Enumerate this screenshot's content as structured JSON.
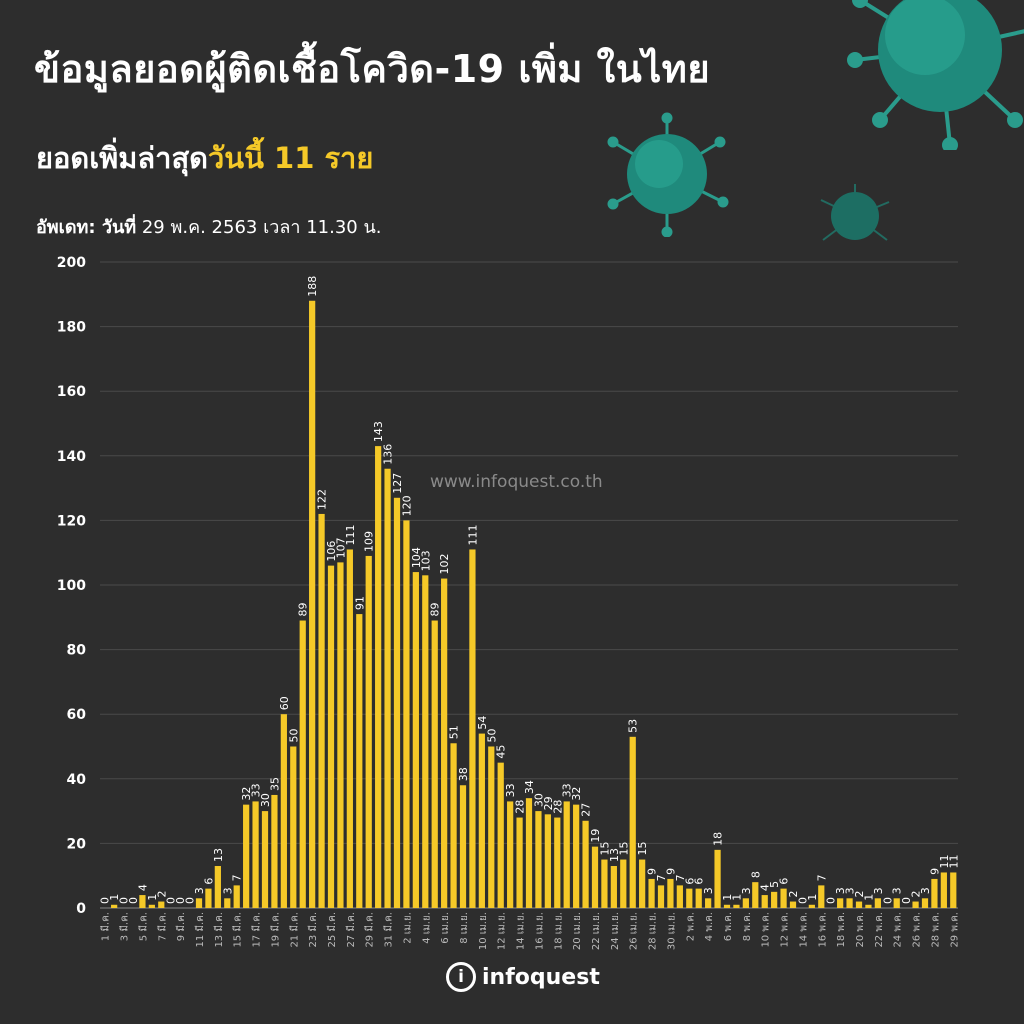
{
  "header": {
    "title": "ข้อมูลยอดผู้ติดเชื้อโควิด-19 เพิ่ม ในไทย",
    "subtitle_prefix": "ยอดเพิ่มล่าสุด",
    "subtitle_highlight": "วันนี้ 11 ราย",
    "update_label": "อัพเดท: วันที่",
    "update_value": "29 พ.ค. 2563 เวลา 11.30 น."
  },
  "watermark": "www.infoquest.co.th",
  "logo": {
    "mark": "i",
    "text": "infoquest"
  },
  "colors": {
    "background": "#2d2d2d",
    "bar": "#f5c928",
    "accent": "#f5c928",
    "virus": "#2a9c8c"
  },
  "chart_data": {
    "type": "bar",
    "ylim": [
      0,
      200
    ],
    "yticks": [
      0,
      20,
      40,
      60,
      80,
      100,
      120,
      140,
      160,
      180,
      200
    ],
    "grid": true,
    "x_tick_labels": [
      "1 มี.ค.",
      "3 มี.ค.",
      "5 มี.ค.",
      "7 มี.ค.",
      "9 มี.ค.",
      "11 มี.ค.",
      "13 มี.ค.",
      "15 มี.ค.",
      "17 มี.ค.",
      "19 มี.ค.",
      "21 มี.ค.",
      "23 มี.ค.",
      "25 มี.ค.",
      "27 มี.ค.",
      "29 มี.ค.",
      "31 มี.ค.",
      "2 เม.ย.",
      "4 เม.ย.",
      "6 เม.ย.",
      "8 เม.ย.",
      "10 เม.ย.",
      "12 เม.ย.",
      "14 เม.ย.",
      "16 เม.ย.",
      "18 เม.ย.",
      "20 เม.ย.",
      "22 เม.ย.",
      "24 เม.ย.",
      "26 เม.ย.",
      "28 เม.ย.",
      "30 เม.ย.",
      "2 พ.ค.",
      "4 พ.ค.",
      "6 พ.ค.",
      "8 พ.ค.",
      "10 พ.ค.",
      "12 พ.ค.",
      "14 พ.ค.",
      "16 พ.ค.",
      "18 พ.ค.",
      "20 พ.ค.",
      "22 พ.ค.",
      "24 พ.ค.",
      "26 พ.ค.",
      "28 พ.ค.",
      "29 พ.ค."
    ],
    "values": [
      0,
      1,
      0,
      0,
      4,
      1,
      2,
      0,
      0,
      0,
      3,
      6,
      13,
      3,
      7,
      32,
      33,
      30,
      35,
      60,
      50,
      89,
      188,
      122,
      106,
      107,
      111,
      91,
      109,
      143,
      136,
      127,
      120,
      104,
      103,
      89,
      102,
      51,
      38,
      111,
      54,
      50,
      45,
      33,
      28,
      34,
      30,
      29,
      28,
      33,
      32,
      27,
      19,
      15,
      13,
      15,
      53,
      15,
      9,
      7,
      9,
      7,
      6,
      6,
      3,
      18,
      1,
      1,
      3,
      8,
      4,
      5,
      6,
      2,
      0,
      1,
      7,
      0,
      3,
      3,
      2,
      1,
      3,
      0,
      3,
      0,
      2,
      3,
      9,
      11,
      11
    ]
  }
}
